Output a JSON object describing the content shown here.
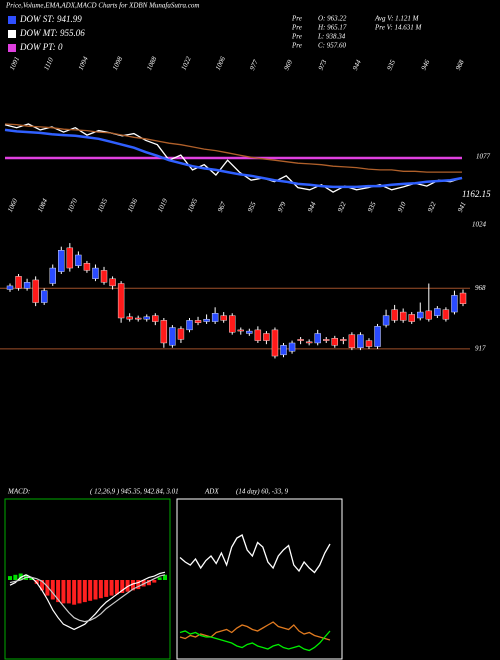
{
  "header": {
    "title": "Price,Volume,EMA,ADX,MACD Charts for XDBN MunafaSutra.com",
    "legend": [
      {
        "label": "DOW ST: 941.99",
        "color": "#2f4fff"
      },
      {
        "label": "DOW MT: 955.06",
        "color": "#ffffff"
      },
      {
        "label": "DOW PT: 0",
        "color": "#e040e0"
      }
    ],
    "stats": [
      [
        "Pre",
        "O: 963.22",
        "Avg V: 1.121 M"
      ],
      [
        "Pre",
        "H: 965.17",
        "Pre  V: 14.631 M"
      ],
      [
        "Pre",
        "L: 938.34"
      ],
      [
        "Pre",
        "C: 957.60"
      ]
    ]
  },
  "chart_data": [
    {
      "type": "line",
      "top_labels": [
        1091,
        1110,
        1094,
        1098,
        1088,
        1022,
        1006,
        977,
        969,
        973,
        944,
        935,
        946,
        968
      ],
      "bottom_labels": [
        1060,
        1084,
        1070,
        1035,
        1036,
        1019,
        1005,
        967,
        955,
        979,
        944,
        922,
        935,
        910,
        922,
        941
      ],
      "annotations": [
        "1162.15",
        "1024"
      ],
      "ylim": [
        1000,
        1155.4
      ],
      "hlines": [
        {
          "value": 1077,
          "color": "#e040e0"
        }
      ],
      "series": [
        {
          "color": "#ffffff",
          "values": [
            1122,
            1118,
            1123,
            1115,
            1119,
            1112,
            1118,
            1108,
            1114,
            1111,
            1107,
            1110,
            1101,
            1095,
            1074,
            1081,
            1061,
            1068,
            1054,
            1074,
            1058,
            1047,
            1050,
            1045,
            1053,
            1037,
            1034,
            1041,
            1031,
            1039,
            1034,
            1037,
            1041,
            1034,
            1038,
            1043,
            1039,
            1047,
            1045,
            1050
          ]
        },
        {
          "color": "#3060ff",
          "values": [
            1115,
            1113,
            1112,
            1111,
            1109,
            1108,
            1107,
            1105,
            1103,
            1099,
            1095,
            1091,
            1085,
            1080,
            1074,
            1070,
            1066,
            1063,
            1061,
            1058,
            1055,
            1053,
            1050,
            1047,
            1045,
            1042,
            1041,
            1039,
            1038,
            1038,
            1038,
            1039,
            1039,
            1041,
            1042,
            1043,
            1045,
            1046,
            1047,
            1050
          ]
        },
        {
          "color": "#b0602a",
          "values": [
            1123,
            1122,
            1120,
            1119,
            1118,
            1116,
            1115,
            1114,
            1112,
            1111,
            1108,
            1105,
            1103,
            1100,
            1097,
            1095,
            1092,
            1089,
            1087,
            1084,
            1081,
            1078,
            1076,
            1074,
            1072,
            1070,
            1069,
            1068,
            1066,
            1065,
            1064,
            1062,
            1061,
            1061,
            1059,
            1059,
            1058,
            1058,
            1058,
            1058
          ]
        }
      ]
    },
    {
      "type": "candlestick",
      "ylim": [
        906,
        1017
      ],
      "yticks": [
        917,
        968
      ],
      "up_color": "#2a4bff",
      "down_color": "#ff1a1a",
      "open": [
        967,
        978,
        968,
        975,
        956,
        972,
        982,
        1002,
        987,
        989,
        976,
        983,
        976,
        972,
        944,
        943,
        942,
        945,
        941,
        920,
        934,
        933,
        941,
        940,
        940,
        945,
        945,
        933,
        930,
        933,
        930,
        933,
        912,
        915,
        925,
        923,
        922,
        925,
        926,
        925,
        929,
        918,
        924,
        919,
        937,
        950,
        948,
        946,
        943,
        949,
        945,
        950,
        948,
        964
      ],
      "high": [
        972,
        980,
        976,
        978,
        968,
        988,
        1003,
        1006,
        999,
        991,
        988,
        986,
        978,
        974,
        947,
        945,
        946,
        947,
        943,
        937,
        936,
        943,
        944,
        946,
        952,
        948,
        947,
        935,
        934,
        936,
        932,
        935,
        922,
        924,
        927,
        925,
        933,
        927,
        928,
        927,
        931,
        931,
        926,
        938,
        950,
        954,
        951,
        948,
        956,
        972,
        953,
        952,
        966,
        967
      ],
      "low": [
        965,
        966,
        966,
        953,
        954,
        970,
        980,
        982,
        985,
        981,
        974,
        971,
        967,
        939,
        940,
        940,
        940,
        937,
        918,
        918,
        922,
        931,
        937,
        938,
        938,
        939,
        929,
        929,
        928,
        922,
        921,
        909,
        910,
        913,
        921,
        920,
        920,
        922,
        918,
        921,
        916,
        916,
        917,
        917,
        935,
        939,
        939,
        938,
        941,
        940,
        943,
        940,
        946,
        953
      ],
      "close": [
        970,
        968,
        973,
        956,
        966,
        985,
        1000,
        985,
        996,
        983,
        985,
        973,
        970,
        943,
        942,
        942,
        944,
        940,
        922,
        935,
        925,
        941,
        939,
        942,
        947,
        941,
        931,
        932,
        932,
        924,
        924,
        911,
        920,
        922,
        924,
        922,
        930,
        924,
        920,
        924,
        918,
        929,
        919,
        936,
        945,
        941,
        941,
        940,
        948,
        942,
        951,
        942,
        962,
        955
      ]
    },
    {
      "type": "macd",
      "title": "MACD:",
      "params": "( 12,26,9 ) 945.35, 942.84, 3.01",
      "ylim": [
        -60,
        60
      ],
      "pos_color": "#00dd00",
      "neg_color": "#ff2020",
      "histogram": [
        3,
        4,
        5,
        4,
        2,
        -3,
        -8,
        -12,
        -15,
        -17,
        -18,
        -18,
        -19,
        -18,
        -17,
        -16,
        -15,
        -14,
        -13,
        -12,
        -11,
        -10,
        -9,
        -8,
        -7,
        -5,
        -4,
        -2,
        2,
        4
      ],
      "series": [
        {
          "color": "#ffffff",
          "values": [
            -4,
            -2,
            2,
            4,
            2,
            -2,
            -8,
            -15,
            -23,
            -29,
            -34,
            -36,
            -38,
            -36,
            -34,
            -30,
            -26,
            -21,
            -17,
            -14,
            -11,
            -8,
            -5,
            -3,
            -2,
            0,
            2,
            3,
            5,
            6
          ]
        },
        {
          "color": "#cccccc",
          "values": [
            -2,
            -1,
            0,
            2,
            2,
            1,
            -1,
            -5,
            -10,
            -15,
            -20,
            -25,
            -29,
            -31,
            -32,
            -31,
            -29,
            -26,
            -22,
            -19,
            -16,
            -13,
            -10,
            -7,
            -5,
            -3,
            -1,
            1,
            3,
            4
          ]
        }
      ]
    },
    {
      "type": "line",
      "title": "ADX",
      "params": "(14 day) 60, -33, 9",
      "ylim": [
        0,
        100
      ],
      "series": [
        {
          "color": "#ffffff",
          "values": [
            65,
            62,
            60,
            64,
            58,
            63,
            66,
            61,
            68,
            60,
            72,
            78,
            80,
            70,
            66,
            75,
            72,
            62,
            58,
            66,
            70,
            73,
            60,
            56,
            62,
            58,
            55,
            60,
            68,
            74
          ]
        },
        {
          "color": "#e07a20",
          "values": [
            12,
            11,
            13,
            12,
            14,
            13,
            12,
            15,
            16,
            17,
            15,
            18,
            20,
            19,
            17,
            16,
            18,
            20,
            22,
            19,
            18,
            17,
            20,
            16,
            14,
            15,
            13,
            12,
            11,
            10
          ]
        },
        {
          "color": "#00ee00",
          "values": [
            15,
            16,
            14,
            15,
            13,
            12,
            12,
            11,
            10,
            9,
            8,
            6,
            5,
            7,
            8,
            6,
            5,
            4,
            6,
            7,
            5,
            4,
            5,
            6,
            4,
            3,
            5,
            8,
            12,
            16
          ]
        }
      ]
    }
  ]
}
